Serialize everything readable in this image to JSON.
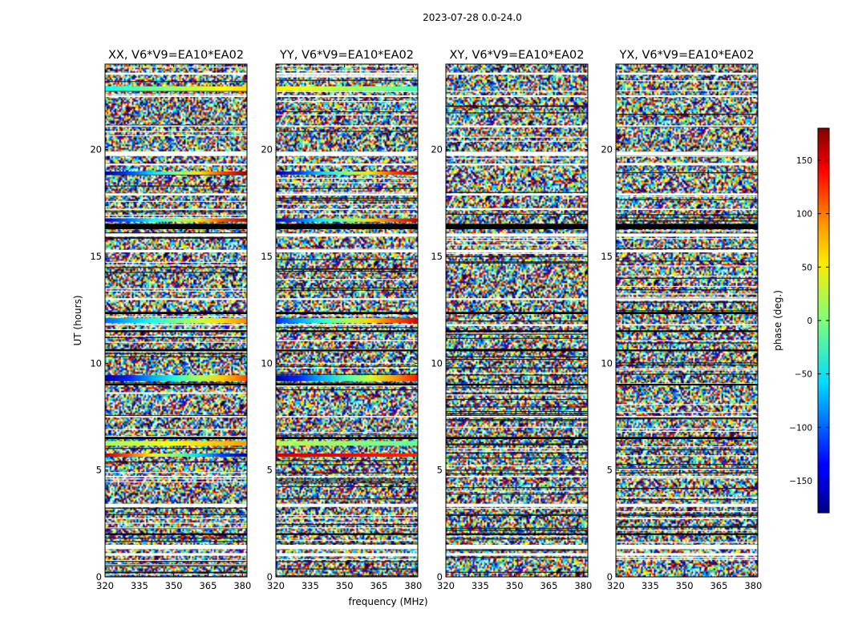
{
  "chart_data": {
    "type": "heatmap",
    "suptitle": "2023-07-28 0.0-24.0",
    "xlabel": "frequency (MHz)",
    "ylabel": "UT (hours)",
    "xlim": [
      320,
      382
    ],
    "ylim": [
      0,
      24
    ],
    "xticks": [
      320,
      335,
      350,
      365,
      380
    ],
    "yticks": [
      0,
      5,
      10,
      15,
      20
    ],
    "colorbar": {
      "label": "phase (deg.)",
      "range": [
        -180,
        180
      ],
      "ticks": [
        150,
        100,
        50,
        0,
        -50,
        -100,
        -150
      ],
      "tick_labels": [
        "150",
        "100",
        "50",
        "0",
        "−50",
        "−100",
        "−150"
      ],
      "colormap": "jet"
    },
    "panels": [
      {
        "title": "XX, V6*V9=EA10*EA02",
        "coherent_bands": [
          {
            "ut": 22.85,
            "w": 0.22,
            "phase_start": -40,
            "phase_end": 60
          },
          {
            "ut": 18.9,
            "w": 0.15,
            "phase_start": -170,
            "phase_end": 170
          },
          {
            "ut": 16.7,
            "w": 0.15,
            "phase_start": -150,
            "phase_end": 160
          },
          {
            "ut": 12.0,
            "w": 0.22,
            "phase_start": -100,
            "phase_end": 90
          },
          {
            "ut": 9.3,
            "w": 0.28,
            "phase_start": -170,
            "phase_end": 110
          },
          {
            "ut": 6.25,
            "w": 0.22,
            "phase_start": 10,
            "phase_end": 80
          },
          {
            "ut": 5.7,
            "w": 0.15,
            "phase_start": 160,
            "phase_end": -170
          }
        ]
      },
      {
        "title": "YY, V6*V9=EA10*EA02",
        "coherent_bands": [
          {
            "ut": 22.85,
            "w": 0.22,
            "phase_start": 50,
            "phase_end": -20
          },
          {
            "ut": 18.9,
            "w": 0.15,
            "phase_start": -170,
            "phase_end": 170
          },
          {
            "ut": 16.7,
            "w": 0.15,
            "phase_start": -150,
            "phase_end": 160
          },
          {
            "ut": 12.0,
            "w": 0.22,
            "phase_start": -120,
            "phase_end": 150
          },
          {
            "ut": 9.3,
            "w": 0.28,
            "phase_start": -170,
            "phase_end": 130
          },
          {
            "ut": 6.25,
            "w": 0.22,
            "phase_start": 20,
            "phase_end": -10
          },
          {
            "ut": 5.7,
            "w": 0.15,
            "phase_start": 150,
            "phase_end": 120
          }
        ]
      },
      {
        "title": "XY, V6*V9=EA10*EA02",
        "coherent_bands": []
      },
      {
        "title": "YX, V6*V9=EA10*EA02",
        "coherent_bands": []
      }
    ],
    "flagged_black_bands": [
      {
        "ut": 16.4,
        "w": 0.25
      },
      {
        "ut": 12.35,
        "w": 0.1
      },
      {
        "ut": 11.5,
        "w": 0.08
      },
      {
        "ut": 10.6,
        "w": 0.08
      },
      {
        "ut": 9.0,
        "w": 0.08
      },
      {
        "ut": 6.5,
        "w": 0.1
      },
      {
        "ut": 2.0,
        "w": 0.08
      }
    ],
    "flagged_white_bands": [
      {
        "ut": 23.55,
        "w": 0.1
      },
      {
        "ut": 22.5,
        "w": 0.08
      },
      {
        "ut": 21.1,
        "w": 0.06
      },
      {
        "ut": 19.8,
        "w": 0.2
      },
      {
        "ut": 19.3,
        "w": 0.08
      },
      {
        "ut": 17.9,
        "w": 0.1
      },
      {
        "ut": 17.2,
        "w": 0.06
      },
      {
        "ut": 16.0,
        "w": 0.15
      },
      {
        "ut": 15.25,
        "w": 0.12
      },
      {
        "ut": 13.0,
        "w": 0.08
      },
      {
        "ut": 11.8,
        "w": 0.06
      },
      {
        "ut": 7.5,
        "w": 0.06
      },
      {
        "ut": 4.7,
        "w": 0.06
      },
      {
        "ut": 3.35,
        "w": 0.15
      },
      {
        "ut": 1.4,
        "w": 0.2
      },
      {
        "ut": 1.05,
        "w": 0.12
      }
    ]
  }
}
